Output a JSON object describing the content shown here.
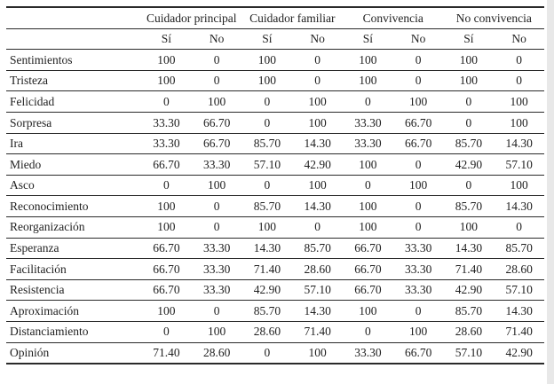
{
  "table": {
    "groups": [
      {
        "label": "Cuidador principal"
      },
      {
        "label": "Cuidador familiar"
      },
      {
        "label": "Convivencia"
      },
      {
        "label": "No convivencia"
      }
    ],
    "subheaders": [
      "Sí",
      "No",
      "Sí",
      "No",
      "Sí",
      "No",
      "Sí",
      "No"
    ],
    "rows": [
      {
        "label": "Sentimientos",
        "values": [
          "100",
          "0",
          "100",
          "0",
          "100",
          "0",
          "100",
          "0"
        ]
      },
      {
        "label": "Tristeza",
        "values": [
          "100",
          "0",
          "100",
          "0",
          "100",
          "0",
          "100",
          "0"
        ]
      },
      {
        "label": "Felicidad",
        "values": [
          "0",
          "100",
          "0",
          "100",
          "0",
          "100",
          "0",
          "100"
        ]
      },
      {
        "label": "Sorpresa",
        "values": [
          "33.30",
          "66.70",
          "0",
          "100",
          "33.30",
          "66.70",
          "0",
          "100"
        ]
      },
      {
        "label": "Ira",
        "values": [
          "33.30",
          "66.70",
          "85.70",
          "14.30",
          "33.30",
          "66.70",
          "85.70",
          "14.30"
        ]
      },
      {
        "label": "Miedo",
        "values": [
          "66.70",
          "33.30",
          "57.10",
          "42.90",
          "100",
          "0",
          "42.90",
          "57.10"
        ]
      },
      {
        "label": "Asco",
        "values": [
          "0",
          "100",
          "0",
          "100",
          "0",
          "100",
          "0",
          "100"
        ]
      },
      {
        "label": "Reconocimiento",
        "values": [
          "100",
          "0",
          "85.70",
          "14.30",
          "100",
          "0",
          "85.70",
          "14.30"
        ]
      },
      {
        "label": "Reorganización",
        "values": [
          "100",
          "0",
          "100",
          "0",
          "100",
          "0",
          "100",
          "0"
        ]
      },
      {
        "label": "Esperanza",
        "values": [
          "66.70",
          "33.30",
          "14.30",
          "85.70",
          "66.70",
          "33.30",
          "14.30",
          "85.70"
        ]
      },
      {
        "label": "Facilitación",
        "values": [
          "66.70",
          "33.30",
          "71.40",
          "28.60",
          "66.70",
          "33.30",
          "71.40",
          "28.60"
        ]
      },
      {
        "label": "Resistencia",
        "values": [
          "66.70",
          "33.30",
          "42.90",
          "57.10",
          "66.70",
          "33.30",
          "42.90",
          "57.10"
        ]
      },
      {
        "label": "Aproximación",
        "values": [
          "100",
          "0",
          "85.70",
          "14.30",
          "100",
          "0",
          "85.70",
          "14.30"
        ]
      },
      {
        "label": "Distanciamiento",
        "values": [
          "0",
          "100",
          "28.60",
          "71.40",
          "0",
          "100",
          "28.60",
          "71.40"
        ]
      },
      {
        "label": "Opinión",
        "values": [
          "71.40",
          "28.60",
          "0",
          "100",
          "33.30",
          "66.70",
          "57.10",
          "42.90"
        ]
      }
    ]
  }
}
